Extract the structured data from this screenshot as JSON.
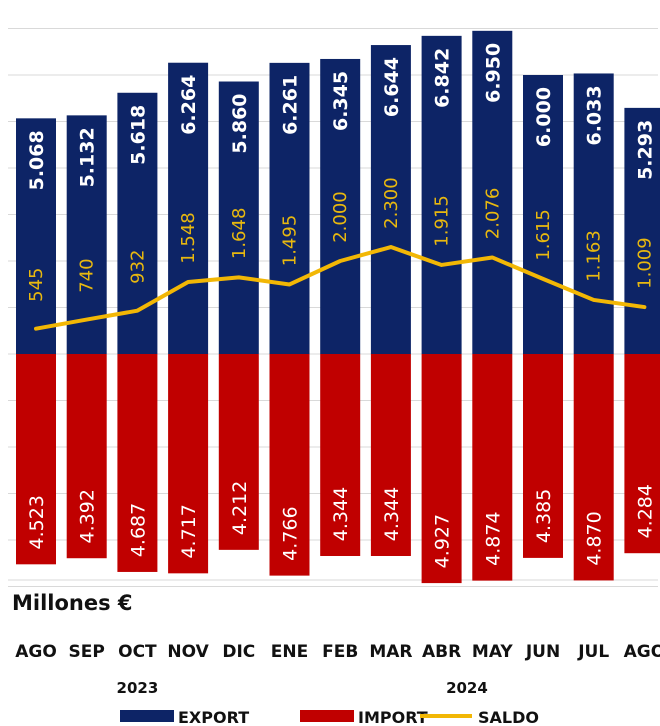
{
  "chart_data": {
    "type": "bar",
    "unit_label": "Millones €",
    "categories": [
      "AGO",
      "SEP",
      "OCT",
      "NOV",
      "DIC",
      "ENE",
      "FEB",
      "MAR",
      "ABR",
      "MAY",
      "JUN",
      "JUL",
      "AGO"
    ],
    "years": [
      {
        "label": "2023",
        "anchor_index": 2
      },
      {
        "label": "2024",
        "anchor_index": 8.5
      }
    ],
    "series": [
      {
        "name": "EXPORT",
        "color": "#0d2466",
        "values": [
          5068,
          5132,
          5618,
          6264,
          5860,
          6261,
          6345,
          6644,
          6842,
          6950,
          6000,
          6033,
          5293
        ],
        "labels": [
          "5.068",
          "5.132",
          "5.618",
          "6.264",
          "5.860",
          "6.261",
          "6.345",
          "6.644",
          "6.842",
          "6.950",
          "6.000",
          "6.033",
          "5.293"
        ]
      },
      {
        "name": "IMPORT",
        "color": "#c00000",
        "values": [
          4523,
          4392,
          4687,
          4717,
          4212,
          4766,
          4344,
          4344,
          4927,
          4874,
          4385,
          4870,
          4284
        ],
        "labels": [
          "4.523",
          "4.392",
          "4.687",
          "4.717",
          "4.212",
          "4.766",
          "4.344",
          "4.344",
          "4.927",
          "4.874",
          "4.385",
          "4.870",
          "4.284"
        ]
      },
      {
        "name": "SALDO",
        "color": "#f2b705",
        "values": [
          545,
          740,
          932,
          1548,
          1648,
          1495,
          2000,
          2300,
          1915,
          2076,
          1615,
          1163,
          1009
        ],
        "labels": [
          "545",
          "740",
          "932",
          "1.548",
          "1.648",
          "1.495",
          "2.000",
          "2.300",
          "1.915",
          "2.076",
          "1.615",
          "1.163",
          "1.009"
        ]
      }
    ],
    "ylim": [
      -5000,
      7500
    ],
    "grid": true,
    "legend_position": "bottom"
  }
}
